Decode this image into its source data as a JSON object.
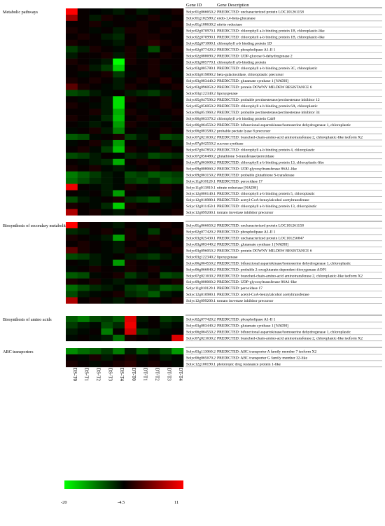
{
  "header": {
    "gene_id": "Gene ID",
    "gene_description": "Gene Description"
  },
  "colors": {
    "low": "#00ff00",
    "mid": "#000000",
    "high": "#ff0000"
  },
  "chart_data": {
    "type": "heatmap",
    "columns": [
      "DS-T0",
      "DS-T1",
      "DS-T2",
      "DS-T3",
      "DS-T4",
      "DT-T0",
      "DT-T1",
      "DT-T2",
      "DT-T3",
      "DT-T4"
    ],
    "color_scale": {
      "min": -20,
      "mid": -4.5,
      "max": 11,
      "labels": [
        "-20",
        "-4.5",
        "11"
      ]
    },
    "sections": [
      {
        "name": "Metabolic pathways",
        "rows": [
          {
            "id": "Solyc01g066650.2",
            "desc": "PREDICTED: uncharacterized protein LOC101261158",
            "v": [
              11,
              -4,
              -4.5,
              -5,
              -6,
              -4,
              -6,
              -5,
              -4,
              -3
            ]
          },
          {
            "id": "Solyc01g102580.2",
            "desc": "endo-1,4-beta-glucanase",
            "v": [
              5,
              -4,
              -6,
              -3,
              -4,
              -5,
              -4,
              -3,
              -5,
              -4
            ]
          },
          {
            "id": "Solyc01g108630.2",
            "desc": "nitrite reductase",
            "v": [
              -4,
              -4,
              -3,
              -5,
              -4,
              -4,
              -3,
              -4,
              -4,
              -3
            ]
          },
          {
            "id": "Solyc02g070970.1",
            "desc": "PREDICTED: chlorophyll a-b binding protein 1B, chloroplastic-like",
            "v": [
              -3,
              -4,
              -5,
              -4,
              -6,
              -3,
              -3,
              -4,
              -3,
              -4
            ]
          },
          {
            "id": "Solyc02g070990.1",
            "desc": "PREDICTED: chlorophyll a-b binding protein 1B, chloroplastic-like",
            "v": [
              -4,
              -3,
              -4,
              -6,
              -7,
              -4,
              -3,
              -3,
              -4,
              -4
            ]
          },
          {
            "id": "Solyc02g071000.1",
            "desc": "chlorophyll a-b binding protein 1D",
            "v": [
              -3,
              -4,
              -4,
              -5,
              -6,
              -4,
              -3,
              -2,
              -3,
              -4
            ]
          },
          {
            "id": "Solyc02g077420.2",
            "desc": "PREDICTED: phospholipase A1-II 1",
            "v": [
              -8,
              -6,
              -3,
              -4,
              -5,
              -3,
              -5,
              -9,
              -4,
              -3
            ]
          },
          {
            "id": "Solyc02g088690.2",
            "desc": "PREDICTED: UDP-glucose 6-dehydrogenase 2",
            "v": [
              -6,
              -4,
              -4,
              -3,
              -6,
              -3,
              -5,
              -4,
              -3,
              -4
            ]
          },
          {
            "id": "Solyc03g005770.1",
            "desc": "chlorophyll a/b-binding protein",
            "v": [
              -3,
              -4,
              -5,
              -6,
              -20,
              -3,
              -4,
              -3,
              -4,
              -4
            ]
          },
          {
            "id": "Solyc03g005780.1",
            "desc": "PREDICTED: chlorophyll a-b binding protein 3C, chloroplastic",
            "v": [
              -4,
              -3,
              -6,
              -8,
              -17,
              -4,
              -4,
              -3,
              -5,
              -4
            ]
          },
          {
            "id": "Solyc03g019890.2",
            "desc": "beta-galactosidase, chloroplastic precursor",
            "v": [
              -4,
              -5,
              -4,
              -3,
              -8,
              -5,
              -4,
              -3,
              -4,
              -5
            ]
          },
          {
            "id": "Solyc03g083440.2",
            "desc": "PREDICTED: glutamate synthase 1 [NADH]",
            "v": [
              -3,
              -4,
              -3,
              -4,
              -6,
              -4,
              -3,
              -4,
              -2,
              -4
            ]
          },
          {
            "id": "Solyc03g096050.2",
            "desc": "PREDICTED: protein DOWNY MILDEW RESISTANCE 6",
            "v": [
              1,
              -3,
              -4,
              -5,
              -6,
              -3,
              -4,
              -5,
              -4,
              -3
            ]
          },
          {
            "id": "Solyc03g122340.2",
            "desc": "lipoxygenase",
            "v": [
              -9,
              -8,
              -6,
              -5,
              -4,
              -6,
              -7,
              -8,
              -6,
              -5
            ]
          },
          {
            "id": "Solyc05g047590.2",
            "desc": "PREDICTED: probable pectinesterase/pectinesterase inhibitor 12",
            "v": [
              -4,
              -5,
              -4,
              -6,
              -18,
              -3,
              -4,
              -4,
              -3,
              -5
            ]
          },
          {
            "id": "Solyc05g056050.2",
            "desc": "PREDICTED: chlorophyll a-b binding protein 6A, chloroplastic",
            "v": [
              -3,
              -4,
              -5,
              -6,
              -18,
              -4,
              -5,
              -4,
              -3,
              -4
            ]
          },
          {
            "id": "Solyc06g051960.2",
            "desc": "PREDICTED: probable pectinesterase/pectinesterase inhibitor 34",
            "v": [
              -4,
              -4,
              -3,
              -6,
              -15,
              -3,
              -4,
              -5,
              -4,
              -3
            ]
          },
          {
            "id": "Solyc06g063370.2",
            "desc": "chlorophyll a-b binding protein Cab9",
            "v": [
              -3,
              -4,
              -5,
              -7,
              -16,
              -4,
              -3,
              -4,
              -5,
              -4
            ]
          },
          {
            "id": "Solyc06g064550.2",
            "desc": "PREDICTED: bifunctional aspartokinase/homoserine dehydrogenase 1, chloroplastic",
            "v": [
              -4,
              -5,
              -6,
              -5,
              -14,
              -3,
              -4,
              -5,
              -4,
              -5
            ]
          },
          {
            "id": "Solyc06g083580.2",
            "desc": "probable pectate lyase 8 precursor",
            "v": [
              -5,
              -4,
              -3,
              -6,
              -12,
              -4,
              -5,
              -4,
              -3,
              -4
            ]
          },
          {
            "id": "Solyc07g021630.2",
            "desc": "PREDICTED: branched-chain-amino-acid aminotransferase 2, chloroplastic-like isoform X2",
            "v": [
              -10,
              -9,
              -5,
              -4,
              -3,
              -8,
              -6,
              -4,
              -9,
              -8
            ]
          },
          {
            "id": "Solyc07g042550.2",
            "desc": "sucrose synthase",
            "v": [
              -5,
              -4,
              -3,
              -6,
              -14,
              -4,
              -5,
              -3,
              -4,
              -6
            ]
          },
          {
            "id": "Solyc07g047850.2",
            "desc": "PREDICTED: chlorophyll a-b binding protein 4, chloroplastic",
            "v": [
              -4,
              -3,
              -5,
              -8,
              -16,
              -3,
              -4,
              -5,
              -3,
              -4
            ]
          },
          {
            "id": "Solyc07g056480.2",
            "desc": "glutathione S-transferase/peroxidase",
            "v": [
              -9,
              -8,
              -6,
              -4,
              -5,
              -7,
              -6,
              -9,
              -8,
              -7
            ]
          },
          {
            "id": "Solyc07g063600.2",
            "desc": "PREDICTED: chlorophyll a-b binding protein 13, chloroplastic-like",
            "v": [
              -4,
              -5,
              -6,
              -7,
              -15,
              -4,
              -3,
              -4,
              -5,
              -4
            ]
          },
          {
            "id": "Solyc09g008060.2",
            "desc": "PREDICTED: UDP-glycosyltransferase 86A1-like",
            "v": [
              -3,
              -4,
              -3,
              -5,
              -6,
              -5,
              -4,
              -3,
              -4,
              -3
            ]
          },
          {
            "id": "Solyc09g063150.2",
            "desc": "PREDICTED: probable glutathione S-transferase",
            "v": [
              -12,
              -10,
              -8,
              -6,
              -5,
              -9,
              -8,
              -10,
              -9,
              -8
            ]
          },
          {
            "id": "Solyc11g010120.1",
            "desc": "PREDICTED: peroxidase 17",
            "v": [
              -11,
              -9,
              -7,
              -6,
              -5,
              -8,
              -9,
              -7,
              -10,
              -9
            ]
          },
          {
            "id": "Solyc11g013810.1",
            "desc": "nitrate reductase [NADH]",
            "v": [
              10,
              -4,
              -5,
              -6,
              -5,
              -3,
              -4,
              -5,
              -3,
              -4
            ]
          },
          {
            "id": "Solyc12g006140.1",
            "desc": "PREDICTED: chlorophyll a-b binding protein 5, chloroplastic",
            "v": [
              -4,
              -5,
              -4,
              -6,
              -14,
              -4,
              -5,
              -4,
              -3,
              -5
            ]
          },
          {
            "id": "Solyc12g010980.1",
            "desc": "PREDICTED: acetyl-CoA-benzylalcohol acetyltransferase",
            "v": [
              -9,
              -6,
              -5,
              -4,
              -3,
              -7,
              -8,
              -10,
              -6,
              -5
            ]
          },
          {
            "id": "Solyc12g011450.1",
            "desc": "PREDICTED: chlorophyll a-b binding protein 13, chloroplastic",
            "v": [
              -3,
              -4,
              -5,
              -7,
              -17,
              -3,
              -4,
              -4,
              -5,
              -4
            ]
          },
          {
            "id": "Solyc12g099200.1",
            "desc": "tomato invertase inhibitor precursor",
            "v": [
              6,
              -4,
              -3,
              -5,
              -6,
              -4,
              -3,
              -5,
              -4,
              -3
            ]
          }
        ]
      },
      {
        "name": "Biosynthesis of secondary metabolites",
        "rows": [
          {
            "id": "Solyc01g066650.2",
            "desc": "PREDICTED: uncharacterized protein LOC101261158",
            "v": [
              11,
              -3,
              -4,
              -5,
              -6,
              -4,
              -5,
              -4,
              -3,
              -4
            ]
          },
          {
            "id": "Solyc02g077420.2",
            "desc": "PREDICTED: phospholipase A1-II 1",
            "v": [
              -7,
              -6,
              -4,
              -3,
              -5,
              -3,
              -5,
              -8,
              -4,
              -3
            ]
          },
          {
            "id": "Solyc03g025430.1",
            "desc": "PREDICTED: uncharacterized protein LOC101256847",
            "v": [
              -3,
              -4,
              -5,
              -6,
              -14,
              -3,
              -4,
              -3,
              -4,
              -5
            ]
          },
          {
            "id": "Solyc03g083440.2",
            "desc": "PREDICTED: glutamate synthase 1 [NADH]",
            "v": [
              -4,
              -3,
              -4,
              -5,
              -6,
              -4,
              -3,
              -4,
              -3,
              -4
            ]
          },
          {
            "id": "Solyc03g096050.2",
            "desc": "PREDICTED: protein DOWNY MILDEW RESISTANCE 6",
            "v": [
              1,
              -3,
              -4,
              -5,
              -6,
              -3,
              -4,
              -5,
              -4,
              -3
            ]
          },
          {
            "id": "Solyc03g122340.2",
            "desc": "lipoxygenase",
            "v": [
              -9,
              -8,
              -6,
              -5,
              -4,
              -6,
              -7,
              -8,
              -6,
              -5
            ]
          },
          {
            "id": "Solyc06g064550.2",
            "desc": "PREDICTED: bifunctional aspartokinase/homoserine dehydrogenase 1, chloroplastic",
            "v": [
              -4,
              -5,
              -6,
              -5,
              -14,
              -3,
              -4,
              -5,
              -4,
              -5
            ]
          },
          {
            "id": "Solyc06g066840.2",
            "desc": "PREDICTED: probable 2-oxoglutarate-dependent dioxygenase AOP1",
            "v": [
              -5,
              -4,
              -3,
              -4,
              -5,
              -3,
              -4,
              -3,
              -5,
              -4
            ]
          },
          {
            "id": "Solyc07g021630.2",
            "desc": "PREDICTED: branched-chain-amino-acid aminotransferase 2, chloroplastic-like isoform X2",
            "v": [
              -10,
              -9,
              -5,
              -4,
              -3,
              -8,
              -6,
              -4,
              -9,
              -8
            ]
          },
          {
            "id": "Solyc09g008060.2",
            "desc": "PREDICTED: UDP-glycosyltransferase 86A1-like",
            "v": [
              -3,
              -4,
              -3,
              -5,
              -6,
              -5,
              -4,
              -3,
              -4,
              -3
            ]
          },
          {
            "id": "Solyc11g010120.1",
            "desc": "PREDICTED: peroxidase 17",
            "v": [
              -11,
              -9,
              -7,
              -6,
              -5,
              -8,
              -9,
              -7,
              -10,
              -9
            ]
          },
          {
            "id": "Solyc12g010980.1",
            "desc": "PREDICTED: acetyl-CoA-benzylalcohol acetyltransferase",
            "v": [
              -9,
              -6,
              -5,
              -4,
              -3,
              -7,
              -8,
              -10,
              -6,
              -5
            ]
          },
          {
            "id": "Solyc12g099200.1",
            "desc": "tomato invertase inhibitor precursor",
            "v": [
              6,
              -4,
              -3,
              -5,
              -6,
              -4,
              -3,
              -5,
              -4,
              -3
            ]
          }
        ]
      },
      {
        "name": "Biosynthesis of amino acids",
        "rows": [
          {
            "id": "Solyc02g077420.2",
            "desc": "PREDICTED: phospholipase A1-II 1",
            "v": [
              -10,
              -12,
              -9,
              -8,
              -10,
              9,
              -6,
              -4,
              -8,
              -7
            ]
          },
          {
            "id": "Solyc03g083440.2",
            "desc": "PREDICTED: glutamate synthase 1 [NADH]",
            "v": [
              -8,
              -6,
              -5,
              -9,
              -7,
              10,
              -5,
              -4,
              -6,
              -5
            ]
          },
          {
            "id": "Solyc06g064550.2",
            "desc": "PREDICTED: bifunctional aspartokinase/homoserine dehydrogenase 1, chloroplastic",
            "v": [
              -6,
              -5,
              -4,
              -12,
              -4,
              8,
              -8,
              -6,
              -5,
              -4
            ]
          },
          {
            "id": "Solyc07g021630.2",
            "desc": "PREDICTED: branched-chain-amino-acid aminotransferase 2, chloroplastic-like isoform X2",
            "v": [
              -5,
              -4,
              -5,
              -6,
              -11,
              -3,
              -4,
              -5,
              -4,
              9
            ]
          }
        ]
      },
      {
        "name": "ABC transporters",
        "rows": [
          {
            "id": "Solyc03g113060.2",
            "desc": "PREDICTED: ABC transporter A family member 7 isoform X2",
            "v": [
              -13,
              -11,
              -10,
              -8,
              -12,
              -6,
              -10,
              -7,
              -9,
              -14
            ]
          },
          {
            "id": "Solyc06g065670.2",
            "desc": "PREDICTED: ABC transporter G family member 32-like",
            "v": [
              -4,
              -5,
              -3,
              -6,
              -4,
              -3,
              -5,
              -4,
              -6,
              -5
            ]
          },
          {
            "id": "Solyc12g100190.1",
            "desc": "pleiotropic drug resistance protein 1-like",
            "v": [
              -3,
              -4,
              -5,
              -4,
              -3,
              -2,
              -4,
              -3,
              -4,
              -5
            ]
          }
        ]
      }
    ]
  }
}
